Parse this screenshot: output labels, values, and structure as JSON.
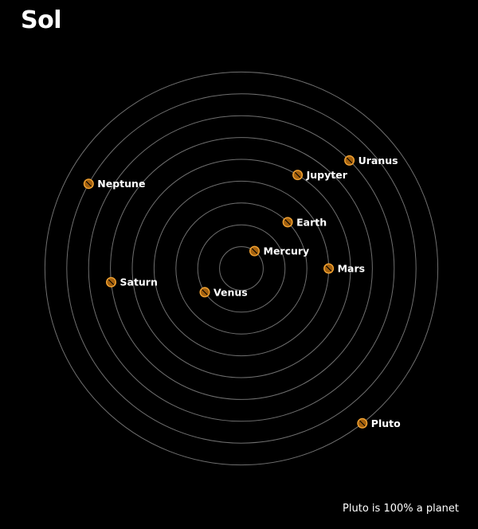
{
  "title": "Sol",
  "footnote": "Pluto is 100% a planet",
  "colors": {
    "background": "#000000",
    "orbit": "#6f6f6f",
    "planet_fill": "#a5620f",
    "planet_ring": "#f3a332",
    "planet_stripe": "#000000",
    "label": "#ffffff"
  },
  "planets": [
    {
      "name": "Mercury",
      "orbit": 1
    },
    {
      "name": "Venus",
      "orbit": 2
    },
    {
      "name": "Earth",
      "orbit": 3
    },
    {
      "name": "Mars",
      "orbit": 4
    },
    {
      "name": "Jupyter",
      "orbit": 5
    },
    {
      "name": "Saturn",
      "orbit": 6
    },
    {
      "name": "Uranus",
      "orbit": 7
    },
    {
      "name": "Neptune",
      "orbit": 8
    },
    {
      "name": "Pluto",
      "orbit": 9
    }
  ]
}
